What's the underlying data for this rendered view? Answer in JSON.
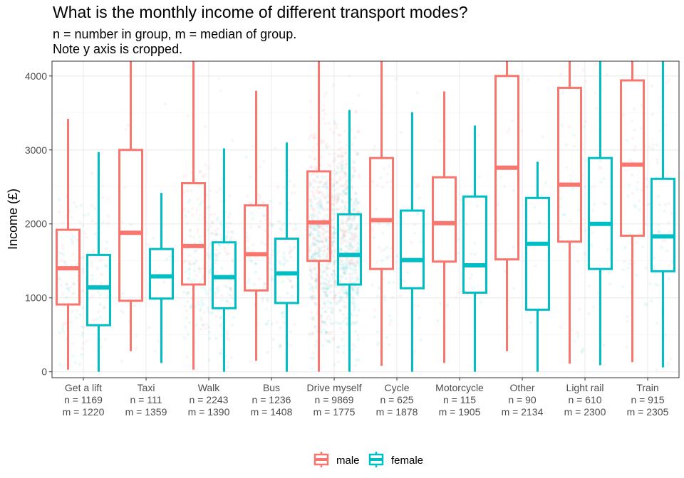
{
  "chart_data": {
    "type": "box",
    "title": "What is the monthly income of different transport modes?",
    "subtitle_lines": [
      "n = number in group, m = median of group.",
      "Note y axis is cropped."
    ],
    "xlabel": "",
    "ylabel": "Income (£)",
    "ylim": [
      -80,
      4200
    ],
    "yticks": [
      0,
      1000,
      2000,
      3000,
      4000
    ],
    "grid": true,
    "legend_position": "bottom",
    "categories": [
      {
        "name": "Get a lift",
        "n": "n = 1169",
        "m": "m = 1220"
      },
      {
        "name": "Taxi",
        "n": "n = 111",
        "m": "m = 1359"
      },
      {
        "name": "Walk",
        "n": "n = 2243",
        "m": "m = 1390"
      },
      {
        "name": "Bus",
        "n": "n = 1236",
        "m": "m = 1408"
      },
      {
        "name": "Drive myself",
        "n": "n = 9869",
        "m": "m = 1775"
      },
      {
        "name": "Cycle",
        "n": "n = 625",
        "m": "m = 1878"
      },
      {
        "name": "Motorcycle",
        "n": "n = 115",
        "m": "m = 1905"
      },
      {
        "name": "Other",
        "n": "n = 90",
        "m": "m = 2134"
      },
      {
        "name": "Light rail",
        "n": "n = 610",
        "m": "m = 2300"
      },
      {
        "name": "Train",
        "n": "n = 915",
        "m": "m = 2305"
      }
    ],
    "series": [
      {
        "name": "male",
        "color": "#F8766D",
        "boxes": [
          {
            "whisker_low": 30,
            "q1": 910,
            "median": 1400,
            "q3": 1920,
            "whisker_high": 3420
          },
          {
            "whisker_low": 280,
            "q1": 960,
            "median": 1880,
            "q3": 3000,
            "whisker_high": 4200
          },
          {
            "whisker_low": 30,
            "q1": 1180,
            "median": 1700,
            "q3": 2550,
            "whisker_high": 4200
          },
          {
            "whisker_low": 150,
            "q1": 1100,
            "median": 1590,
            "q3": 2250,
            "whisker_high": 3800
          },
          {
            "whisker_low": 0,
            "q1": 1500,
            "median": 2020,
            "q3": 2710,
            "whisker_high": 4200
          },
          {
            "whisker_low": 80,
            "q1": 1390,
            "median": 2050,
            "q3": 2890,
            "whisker_high": 4200
          },
          {
            "whisker_low": 120,
            "q1": 1490,
            "median": 2010,
            "q3": 2630,
            "whisker_high": 3790
          },
          {
            "whisker_low": 280,
            "q1": 1520,
            "median": 2760,
            "q3": 4000,
            "whisker_high": 4200
          },
          {
            "whisker_low": 110,
            "q1": 1760,
            "median": 2530,
            "q3": 3840,
            "whisker_high": 4200
          },
          {
            "whisker_low": 130,
            "q1": 1840,
            "median": 2800,
            "q3": 3940,
            "whisker_high": 4200
          }
        ]
      },
      {
        "name": "female",
        "color": "#00BFC4",
        "boxes": [
          {
            "whisker_low": 0,
            "q1": 630,
            "median": 1140,
            "q3": 1580,
            "whisker_high": 2970
          },
          {
            "whisker_low": 120,
            "q1": 990,
            "median": 1290,
            "q3": 1660,
            "whisker_high": 2420
          },
          {
            "whisker_low": 0,
            "q1": 860,
            "median": 1280,
            "q3": 1750,
            "whisker_high": 3020
          },
          {
            "whisker_low": 0,
            "q1": 930,
            "median": 1330,
            "q3": 1800,
            "whisker_high": 3100
          },
          {
            "whisker_low": 0,
            "q1": 1180,
            "median": 1580,
            "q3": 2130,
            "whisker_high": 3540
          },
          {
            "whisker_low": 0,
            "q1": 1130,
            "median": 1510,
            "q3": 2180,
            "whisker_high": 3510
          },
          {
            "whisker_low": 0,
            "q1": 1070,
            "median": 1440,
            "q3": 2370,
            "whisker_high": 3330
          },
          {
            "whisker_low": 0,
            "q1": 840,
            "median": 1730,
            "q3": 2350,
            "whisker_high": 2840
          },
          {
            "whisker_low": 90,
            "q1": 1390,
            "median": 2000,
            "q3": 2890,
            "whisker_high": 4200
          },
          {
            "whisker_low": 60,
            "q1": 1360,
            "median": 1830,
            "q3": 2610,
            "whisker_high": 4200
          }
        ]
      }
    ],
    "jittered_points": true
  }
}
